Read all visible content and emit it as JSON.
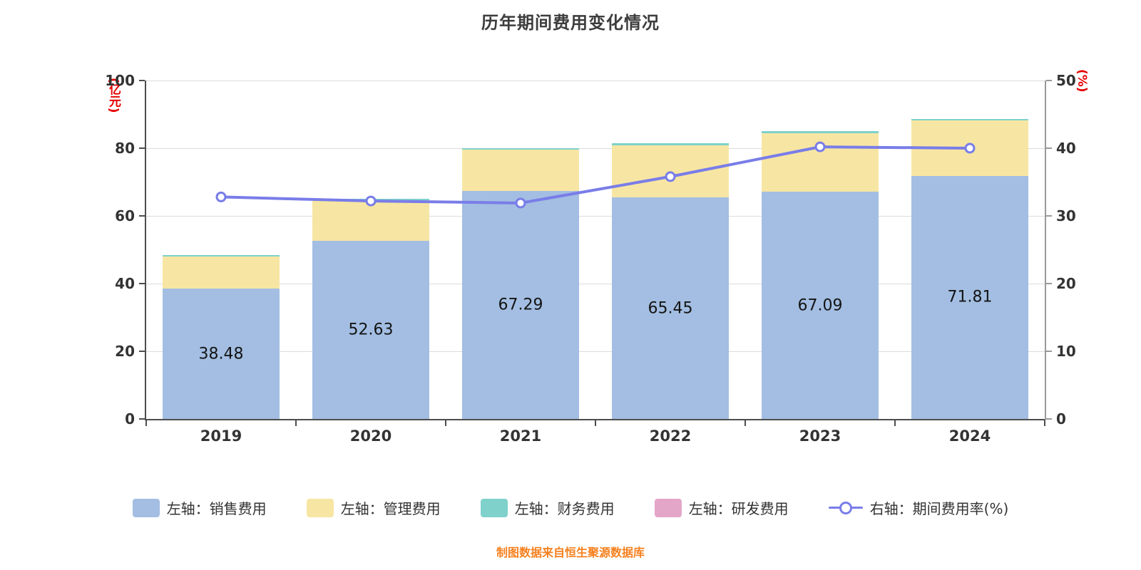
{
  "title": "历年期间费用变化情况",
  "source_note": "制图数据来自恒生聚源数据库",
  "left_axis": {
    "unit": "(亿元)",
    "min": 0,
    "max": 100,
    "ticks": [
      0,
      20,
      40,
      60,
      80,
      100
    ]
  },
  "right_axis": {
    "unit": "(%)",
    "min": 0,
    "max": 50,
    "ticks": [
      0,
      10,
      20,
      30,
      40,
      50
    ]
  },
  "colors": {
    "bar_sales": "#A3BEE2",
    "bar_admin": "#F7E6A3",
    "bar_finance": "#7FD1CB",
    "bar_rnd": "#E3A6C9",
    "rate_line": "#797DE8",
    "axis_unit": "#E60000",
    "source_text": "#F5811F"
  },
  "legend": [
    {
      "id": "sales",
      "label": "左轴：销售费用",
      "type": "swatch",
      "color": "#A3BEE2"
    },
    {
      "id": "admin",
      "label": "左轴：管理费用",
      "type": "swatch",
      "color": "#F7E6A3"
    },
    {
      "id": "finance",
      "label": "左轴：财务费用",
      "type": "swatch",
      "color": "#7FD1CB"
    },
    {
      "id": "rnd",
      "label": "左轴：研发费用",
      "type": "swatch",
      "color": "#E3A6C9"
    },
    {
      "id": "rate",
      "label": "右轴：期间费用率(%)",
      "type": "line",
      "color": "#797DE8"
    }
  ],
  "chart_data": {
    "type": "stacked-bar+line",
    "categories": [
      "2019",
      "2020",
      "2021",
      "2022",
      "2023",
      "2024"
    ],
    "left_ylim": [
      0,
      100
    ],
    "right_ylim": [
      0,
      50
    ],
    "grid": true,
    "legend_position": "bottom",
    "series": [
      {
        "id": "sales",
        "name": "销售费用",
        "type": "bar",
        "axis": "left",
        "color": "#A3BEE2",
        "show_labels": true,
        "values": [
          38.48,
          52.63,
          67.29,
          65.45,
          67.09,
          71.81
        ]
      },
      {
        "id": "admin",
        "name": "管理费用",
        "type": "bar",
        "axis": "left",
        "color": "#F7E6A3",
        "show_labels": false,
        "values": [
          9.6,
          12.0,
          12.2,
          15.4,
          17.3,
          16.5
        ]
      },
      {
        "id": "finance",
        "name": "财务费用",
        "type": "bar",
        "axis": "left",
        "color": "#7FD1CB",
        "show_labels": false,
        "values": [
          0.45,
          0.35,
          0.45,
          0.6,
          0.6,
          0.35
        ]
      },
      {
        "id": "rnd",
        "name": "研发费用",
        "type": "bar",
        "axis": "left",
        "color": "#E3A6C9",
        "show_labels": false,
        "values": [
          0,
          0,
          0,
          0,
          0,
          0
        ]
      },
      {
        "id": "rate",
        "name": "期间费用率(%)",
        "type": "line",
        "axis": "right",
        "color": "#797DE8",
        "values": [
          32.8,
          32.2,
          31.9,
          35.8,
          40.2,
          40.0
        ]
      }
    ]
  }
}
